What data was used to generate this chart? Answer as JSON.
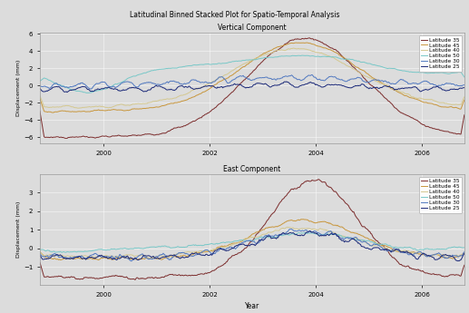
{
  "title": "Latitudinal Binned Stacked Plot for Spatio-Temporal Analysis",
  "subplot1_title": "Vertical Component",
  "subplot2_title": "East Component",
  "xlabel": "Year",
  "ylabel": "Displacement (mm)",
  "x_ticks": [
    2000,
    2002,
    2004,
    2006
  ],
  "legend_labels": [
    "Latitude 35",
    "Latitude 45",
    "Latitude 40",
    "Latitude 50",
    "Latitude 30",
    "Latitude 25"
  ],
  "colors": [
    "#7B2C2C",
    "#C8963C",
    "#D4C890",
    "#78C8C8",
    "#5078C0",
    "#1A2878"
  ],
  "background_color": "#DCDCDC",
  "figure_background": "#DCDCDC",
  "xlim": [
    1998.8,
    2006.8
  ],
  "v_ylim": [
    -7,
    6
  ],
  "e_ylim": [
    -1.6,
    3.5
  ]
}
